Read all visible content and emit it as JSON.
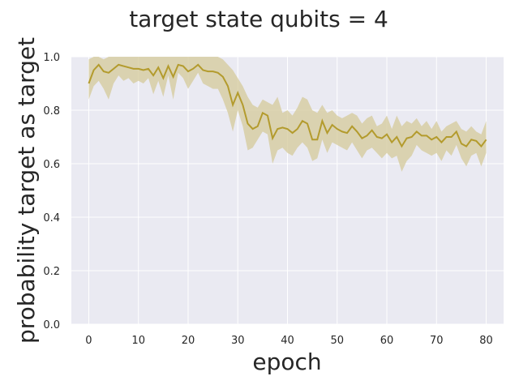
{
  "chart_data": {
    "type": "line",
    "title": "target state qubits = 4",
    "xlabel": "epoch",
    "ylabel": "probability target as target",
    "xlim": [
      -3.5,
      83.5
    ],
    "ylim": [
      0.0,
      1.0
    ],
    "xticks": [
      0,
      10,
      20,
      30,
      40,
      50,
      60,
      70,
      80
    ],
    "yticks": [
      0.0,
      0.2,
      0.4,
      0.6,
      0.8,
      1.0
    ],
    "xtick_labels": [
      "0",
      "10",
      "20",
      "30",
      "40",
      "50",
      "60",
      "70",
      "80"
    ],
    "ytick_labels": [
      "0.0",
      "0.2",
      "0.4",
      "0.6",
      "0.8",
      "1.0"
    ],
    "grid": true,
    "background": "#eaeaf2",
    "line_color": "#b39b2d",
    "band_color": "#d4c99a",
    "series": [
      {
        "x": [
          0,
          1,
          2,
          3,
          4,
          5,
          6,
          7,
          8,
          9,
          10,
          11,
          12,
          13,
          14,
          15,
          16,
          17,
          18,
          19,
          20,
          21,
          22,
          23,
          24,
          25,
          26,
          27,
          28,
          29,
          30,
          31,
          32,
          33,
          34,
          35,
          36,
          37,
          38,
          39,
          40,
          41,
          42,
          43,
          44,
          45,
          46,
          47,
          48,
          49,
          50,
          51,
          52,
          53,
          54,
          55,
          56,
          57,
          58,
          59,
          60,
          61,
          62,
          63,
          64,
          65,
          66,
          67,
          68,
          69,
          70,
          71,
          72,
          73,
          74,
          75,
          76,
          77,
          78,
          79,
          80
        ],
        "mean": [
          0.9,
          0.95,
          0.97,
          0.945,
          0.94,
          0.955,
          0.97,
          0.965,
          0.96,
          0.955,
          0.955,
          0.95,
          0.955,
          0.93,
          0.96,
          0.92,
          0.965,
          0.925,
          0.97,
          0.965,
          0.945,
          0.955,
          0.97,
          0.95,
          0.945,
          0.945,
          0.94,
          0.925,
          0.89,
          0.82,
          0.865,
          0.82,
          0.75,
          0.73,
          0.74,
          0.79,
          0.78,
          0.695,
          0.73,
          0.735,
          0.73,
          0.715,
          0.73,
          0.76,
          0.75,
          0.69,
          0.69,
          0.76,
          0.715,
          0.745,
          0.73,
          0.72,
          0.715,
          0.74,
          0.72,
          0.695,
          0.705,
          0.725,
          0.7,
          0.695,
          0.71,
          0.68,
          0.7,
          0.665,
          0.695,
          0.7,
          0.72,
          0.705,
          0.705,
          0.69,
          0.7,
          0.68,
          0.7,
          0.7,
          0.72,
          0.675,
          0.665,
          0.69,
          0.685,
          0.665,
          0.69
        ],
        "upper": [
          0.99,
          1.0,
          1.0,
          0.99,
          1.0,
          1.0,
          1.0,
          1.0,
          1.0,
          1.0,
          1.0,
          1.0,
          1.0,
          1.0,
          1.0,
          1.0,
          1.0,
          1.0,
          1.0,
          1.0,
          1.0,
          1.0,
          1.0,
          1.0,
          1.0,
          1.0,
          1.0,
          0.99,
          0.97,
          0.95,
          0.92,
          0.89,
          0.85,
          0.82,
          0.81,
          0.84,
          0.83,
          0.82,
          0.85,
          0.79,
          0.8,
          0.78,
          0.81,
          0.85,
          0.84,
          0.8,
          0.79,
          0.82,
          0.79,
          0.8,
          0.78,
          0.77,
          0.78,
          0.79,
          0.78,
          0.75,
          0.77,
          0.78,
          0.74,
          0.75,
          0.78,
          0.73,
          0.78,
          0.74,
          0.76,
          0.75,
          0.77,
          0.74,
          0.76,
          0.73,
          0.76,
          0.72,
          0.74,
          0.75,
          0.76,
          0.73,
          0.72,
          0.74,
          0.72,
          0.71,
          0.76
        ],
        "lower": [
          0.84,
          0.89,
          0.91,
          0.88,
          0.84,
          0.9,
          0.93,
          0.91,
          0.92,
          0.9,
          0.91,
          0.9,
          0.92,
          0.86,
          0.91,
          0.85,
          0.93,
          0.84,
          0.94,
          0.92,
          0.88,
          0.91,
          0.94,
          0.9,
          0.89,
          0.88,
          0.88,
          0.84,
          0.79,
          0.72,
          0.8,
          0.74,
          0.65,
          0.66,
          0.69,
          0.72,
          0.71,
          0.6,
          0.65,
          0.66,
          0.64,
          0.63,
          0.66,
          0.68,
          0.66,
          0.61,
          0.62,
          0.69,
          0.64,
          0.68,
          0.67,
          0.66,
          0.65,
          0.68,
          0.65,
          0.62,
          0.65,
          0.66,
          0.64,
          0.62,
          0.64,
          0.62,
          0.63,
          0.57,
          0.61,
          0.63,
          0.67,
          0.65,
          0.64,
          0.63,
          0.64,
          0.61,
          0.65,
          0.63,
          0.67,
          0.62,
          0.59,
          0.63,
          0.64,
          0.59,
          0.64
        ]
      }
    ]
  }
}
